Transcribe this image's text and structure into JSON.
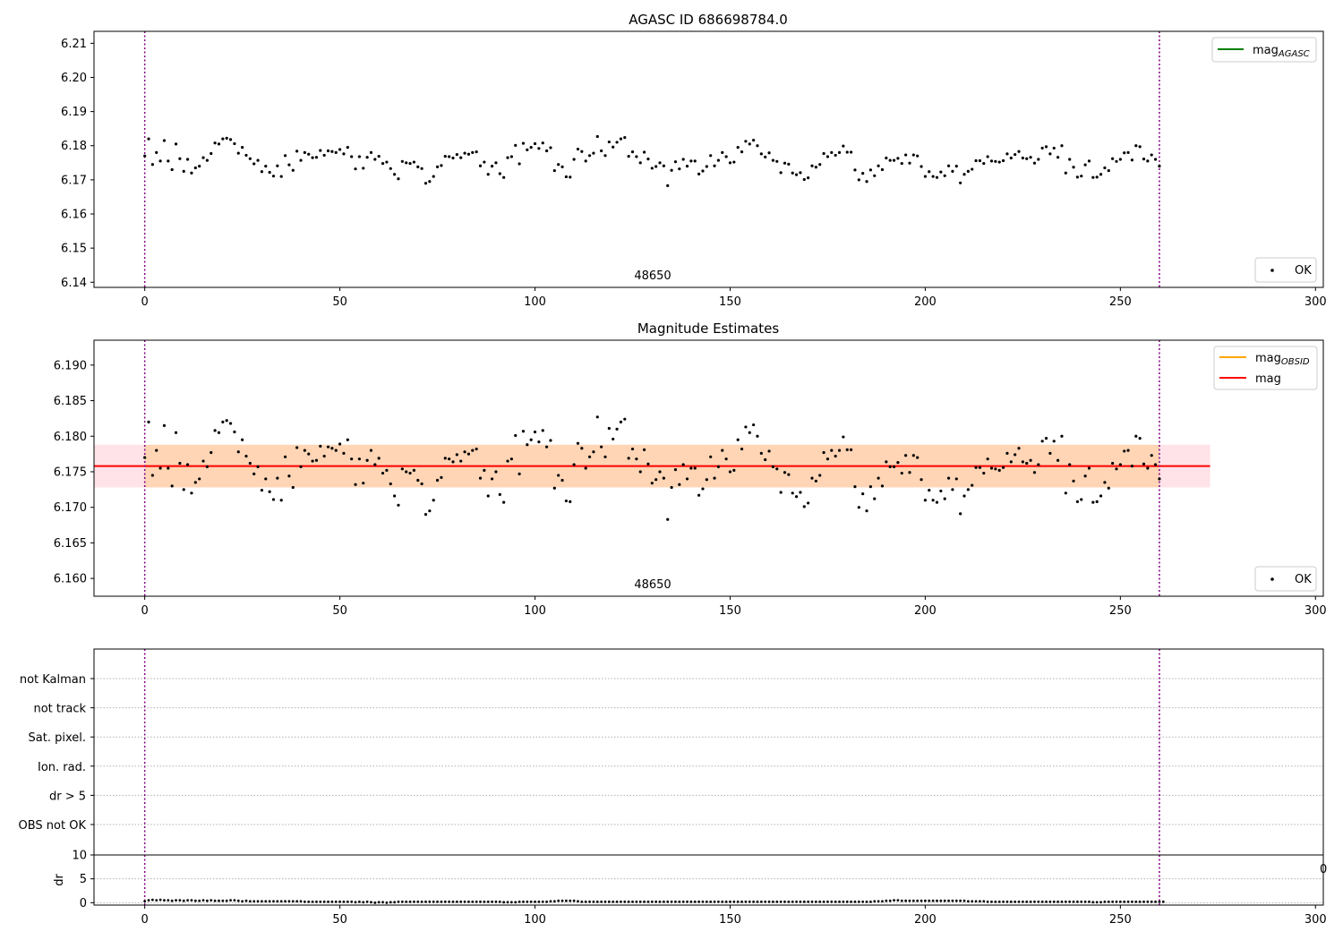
{
  "chart_data": [
    {
      "type": "scatter",
      "title": "AGASC ID 686698784.0",
      "xlabel": "",
      "ylabel": "",
      "xlim": [
        -13,
        302
      ],
      "ylim": [
        6.1385,
        6.2135
      ],
      "xticks": [
        "0",
        "50",
        "100",
        "150",
        "200",
        "250",
        "300"
      ],
      "yticks": [
        "6.14",
        "6.15",
        "6.16",
        "6.17",
        "6.18",
        "6.19",
        "6.20",
        "6.21"
      ],
      "obsid_label": "48650",
      "vlines": [
        0,
        260
      ],
      "vline_color": "#800080",
      "legend_upper": {
        "position": "upper-right",
        "entries": [
          {
            "main": "mag",
            "sub": "AGASC",
            "color": "#008000"
          }
        ]
      },
      "legend_lower": {
        "position": "lower-right",
        "entries": [
          {
            "label": "OK",
            "marker": "point",
            "color": "#000000"
          }
        ]
      },
      "series": [
        {
          "name": "OK",
          "color": "#000000",
          "x_start": 0,
          "x_step": 1,
          "values": [
            6.177,
            6.182,
            6.1745,
            6.178,
            6.1755,
            6.1815,
            6.1755,
            6.173,
            6.1805,
            6.1762,
            6.1725,
            6.176,
            6.172,
            6.1735,
            6.174,
            6.1765,
            6.1757,
            6.1777,
            6.1808,
            6.1805,
            6.182,
            6.1822,
            6.1818,
            6.1806,
            6.1778,
            6.1795,
            6.1772,
            6.1762,
            6.1747,
            6.1757,
            6.1724,
            6.174,
            6.1722,
            6.1711,
            6.1741,
            6.171,
            6.1771,
            6.1744,
            6.1728,
            6.1784,
            6.1757,
            6.178,
            6.1775,
            6.1765,
            6.1766,
            6.1786,
            6.1772,
            6.1785,
            6.1783,
            6.178,
            6.1789,
            6.1776,
            6.1795,
            6.1768,
            6.1732,
            6.1768,
            6.1734,
            6.1766,
            6.178,
            6.176,
            6.1769,
            6.1748,
            6.1752,
            6.1733,
            6.1716,
            6.1703,
            6.1754,
            6.175,
            6.1748,
            6.1752,
            6.1738,
            6.1733,
            6.169,
            6.1695,
            6.171,
            6.1738,
            6.1742,
            6.1769,
            6.1768,
            6.1764,
            6.1774,
            6.1765,
            6.1778,
            6.1775,
            6.178,
            6.1782,
            6.1741,
            6.1752,
            6.1716,
            6.174,
            6.175,
            6.1718,
            6.1707,
            6.1765,
            6.1768,
            6.1801,
            6.1747,
            6.1807,
            6.1788,
            6.1795,
            6.1806,
            6.1792,
            6.1808,
            6.1785,
            6.1794,
            6.1727,
            6.1745,
            6.1738,
            6.1709,
            6.1708,
            6.176,
            6.179,
            6.1783,
            6.1755,
            6.1771,
            6.1778,
            6.1827,
            6.1785,
            6.1771,
            6.1811,
            6.1796,
            6.181,
            6.182,
            6.1824,
            6.1769,
            6.1782,
            6.1768,
            6.175,
            6.1781,
            6.1761,
            6.1734,
            6.1739,
            6.175,
            6.1741,
            6.1683,
            6.1728,
            6.1753,
            6.1732,
            6.176,
            6.174,
            6.1755,
            6.1755,
            6.1717,
            6.1726,
            6.1739,
            6.1771,
            6.1741,
            6.1757,
            6.178,
            6.1768,
            6.175,
            6.1752,
            6.1795,
            6.1782,
            6.1813,
            6.1805,
            6.1816,
            6.18,
            6.1776,
            6.1767,
            6.1779,
            6.1757,
            6.1754,
            6.1721,
            6.1749,
            6.1746,
            6.172,
            6.1715,
            6.1721,
            6.1701,
            6.1706,
            6.1741,
            6.1737,
            6.1745,
            6.1777,
            6.1768,
            6.178,
            6.1772,
            6.178,
            6.1799,
            6.1781,
            6.1781,
            6.1729,
            6.17,
            6.1719,
            6.1695,
            6.1729,
            6.1712,
            6.1741,
            6.173,
            6.1764,
            6.1757,
            6.1757,
            6.1763,
            6.1748,
            6.1773,
            6.1749,
            6.1773,
            6.177,
            6.1739,
            6.171,
            6.1724,
            6.171,
            6.1707,
            6.1723,
            6.1712,
            6.1741,
            6.1725,
            6.174,
            6.1691,
            6.1716,
            6.1725,
            6.1731,
            6.1756,
            6.1756,
            6.1748,
            6.1768,
            6.1755,
            6.1754,
            6.1752,
            6.1756,
            6.1776,
            6.1764,
            6.1774,
            6.1783,
            6.1764,
            6.1762,
            6.1766,
            6.1749,
            6.176,
            6.1793,
            6.1797,
            6.1776,
            6.1793,
            6.1766,
            6.18,
            6.172,
            6.176,
            6.1737,
            6.1708,
            6.1711,
            6.1744,
            6.1755,
            6.1707,
            6.1708,
            6.1716,
            6.1735,
            6.1727,
            6.1762,
            6.1754,
            6.176,
            6.1779,
            6.178,
            6.1758,
            6.18,
            6.1797,
            6.1761,
            6.1755,
            6.1773,
            6.176,
            6.174
          ]
        }
      ]
    },
    {
      "type": "scatter",
      "title": "Magnitude Estimates",
      "xlabel": "",
      "ylabel": "",
      "xlim": [
        -13,
        302
      ],
      "ylim": [
        6.1575,
        6.1935
      ],
      "xticks": [
        "0",
        "50",
        "100",
        "150",
        "200",
        "250",
        "300"
      ],
      "yticks": [
        "6.160",
        "6.165",
        "6.170",
        "6.175",
        "6.180",
        "6.185",
        "6.190"
      ],
      "obsid_label": "48650",
      "vlines": [
        0,
        260
      ],
      "mag": 6.1758,
      "mag_band": {
        "low": 6.1728,
        "high": 6.1788,
        "x0": -13,
        "x1": 273,
        "color": "#ffc0cb"
      },
      "mag_obsid_band": {
        "low": 6.1728,
        "high": 6.1788,
        "x0": 0,
        "x1": 260,
        "color": "#ffa500"
      },
      "legend_upper": {
        "position": "upper-right",
        "entries": [
          {
            "main": "mag",
            "sub": "OBSID",
            "color": "#ffa500"
          },
          {
            "main": "mag",
            "sub": "",
            "color": "#ff0000"
          }
        ]
      },
      "legend_lower": {
        "position": "lower-right",
        "entries": [
          {
            "label": "OK",
            "marker": "point",
            "color": "#000000"
          }
        ]
      },
      "series_ref": "same OK values as first chart"
    },
    {
      "type": "flags",
      "xlabel": "",
      "ylabel": "",
      "xlim": [
        -13,
        302
      ],
      "categories": [
        "not Kalman",
        "not track",
        "Sat. pixel.",
        "Ion. rad.",
        "dr > 5",
        "OBS not OK"
      ],
      "vlines": [
        0,
        260
      ],
      "sub_plot": {
        "ylabel": "dr",
        "ylim": [
          -0.5,
          10
        ],
        "yticks": [
          "0",
          "5",
          "10"
        ],
        "xticks": [
          "0",
          "50",
          "100",
          "150",
          "200",
          "250",
          "300"
        ],
        "right_edge_label": "0",
        "dr_x_start": 0,
        "dr_x_step": 1,
        "dr_values": [
          0.3,
          0.5,
          0.6,
          0.5,
          0.6,
          0.5,
          0.5,
          0.4,
          0.5,
          0.5,
          0.4,
          0.5,
          0.5,
          0.4,
          0.4,
          0.5,
          0.4,
          0.5,
          0.4,
          0.4,
          0.4,
          0.4,
          0.5,
          0.5,
          0.4,
          0.3,
          0.4,
          0.3,
          0.3,
          0.3,
          0.3,
          0.3,
          0.3,
          0.3,
          0.3,
          0.3,
          0.3,
          0.3,
          0.3,
          0.3,
          0.3,
          0.2,
          0.2,
          0.2,
          0.2,
          0.2,
          0.2,
          0.2,
          0.2,
          0.2,
          0.2,
          0.2,
          0.2,
          0.2,
          0.1,
          0.2,
          0.1,
          0.2,
          0.1,
          0.0,
          0.1,
          0.1,
          0.0,
          0.1,
          0.1,
          0.2,
          0.2,
          0.2,
          0.2,
          0.2,
          0.2,
          0.2,
          0.2,
          0.2,
          0.2,
          0.2,
          0.2,
          0.2,
          0.2,
          0.2,
          0.2,
          0.2,
          0.2,
          0.2,
          0.2,
          0.2,
          0.2,
          0.2,
          0.2,
          0.2,
          0.2,
          0.2,
          0.1,
          0.1,
          0.1,
          0.1,
          0.2,
          0.2,
          0.2,
          0.2,
          0.2,
          0.2,
          0.2,
          0.2,
          0.3,
          0.3,
          0.4,
          0.4,
          0.4,
          0.4,
          0.4,
          0.3,
          0.2,
          0.2,
          0.2,
          0.2,
          0.2,
          0.2,
          0.2,
          0.2,
          0.2,
          0.2,
          0.2,
          0.2,
          0.2,
          0.2,
          0.2,
          0.2,
          0.2,
          0.2,
          0.2,
          0.2,
          0.2,
          0.2,
          0.2,
          0.2,
          0.2,
          0.2,
          0.2,
          0.2,
          0.2,
          0.2,
          0.2,
          0.2,
          0.2,
          0.2,
          0.2,
          0.2,
          0.2,
          0.2,
          0.2,
          0.2,
          0.2,
          0.2,
          0.2,
          0.2,
          0.2,
          0.2,
          0.2,
          0.2,
          0.2,
          0.2,
          0.2,
          0.2,
          0.2,
          0.2,
          0.2,
          0.2,
          0.2,
          0.2,
          0.2,
          0.2,
          0.2,
          0.2,
          0.2,
          0.2,
          0.2,
          0.2,
          0.2,
          0.2,
          0.2,
          0.2,
          0.2,
          0.2,
          0.2,
          0.2,
          0.2,
          0.3,
          0.3,
          0.3,
          0.4,
          0.4,
          0.5,
          0.5,
          0.4,
          0.4,
          0.4,
          0.4,
          0.4,
          0.4,
          0.4,
          0.4,
          0.4,
          0.4,
          0.4,
          0.4,
          0.4,
          0.4,
          0.4,
          0.4,
          0.4,
          0.3,
          0.3,
          0.3,
          0.3,
          0.3,
          0.2,
          0.2,
          0.2,
          0.2,
          0.2,
          0.2,
          0.2,
          0.2,
          0.2,
          0.2,
          0.2,
          0.2,
          0.2,
          0.2,
          0.2,
          0.2,
          0.2,
          0.2,
          0.2,
          0.2,
          0.2,
          0.2,
          0.2,
          0.2,
          0.2,
          0.2,
          0.2,
          0.1,
          0.1,
          0.1,
          0.2,
          0.2,
          0.2,
          0.2,
          0.2,
          0.2,
          0.2,
          0.2,
          0.2,
          0.2,
          0.2,
          0.2,
          0.2,
          0.2,
          0.2,
          0.2
        ]
      }
    }
  ]
}
